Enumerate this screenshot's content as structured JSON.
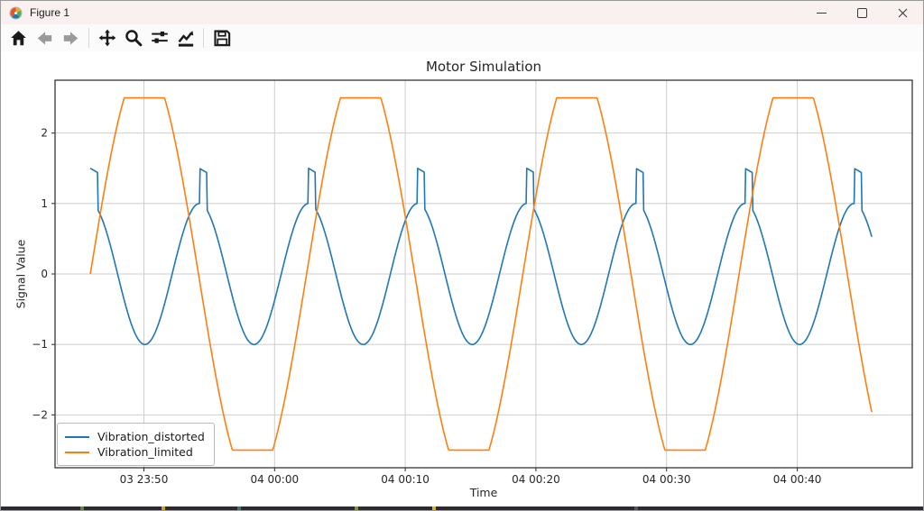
{
  "window": {
    "title": "Figure 1",
    "controls": [
      "minimize",
      "maximize",
      "close"
    ]
  },
  "toolbar": {
    "buttons": [
      "home",
      "back",
      "forward",
      "pan",
      "zoom",
      "configure-subplots",
      "edit-parameters",
      "save"
    ]
  },
  "chart_data": {
    "type": "line",
    "title": "Motor Simulation",
    "xlabel": "Time",
    "ylabel": "Signal Value",
    "grid": true,
    "x_axis": {
      "label": "Time",
      "tick_labels": [
        "03 23:50",
        "04 00:00",
        "04 00:10",
        "04 00:20",
        "04 00:30",
        "04 00:40"
      ],
      "tick_minutes": [
        0,
        10,
        20,
        30,
        40,
        50
      ],
      "xlim_minutes": [
        -6.8,
        58.8
      ],
      "time_origin_label": "03 23:50"
    },
    "y_axis": {
      "label": "Signal Value",
      "ticks": [
        -2,
        -1,
        0,
        1,
        2
      ],
      "ylim": [
        -2.75,
        2.75
      ]
    },
    "legend": {
      "position": "lower left",
      "entries": [
        "Vibration_distorted",
        "Vibration_limited"
      ]
    },
    "series": [
      {
        "name": "Vibration_distorted",
        "color": "#1f77b4",
        "waveform": "sine_with_flat_top_spikes",
        "amplitude": 1.0,
        "period_minutes": 8.35,
        "first_peak_minutes": -4.1,
        "spike_level_start": 1.5,
        "spike_level_end": 1.44,
        "spike_duration_minutes": 0.55,
        "t_start_minutes": -4.1,
        "t_end_minutes": 55.7
      },
      {
        "name": "Vibration_limited",
        "color": "#ff7f0e",
        "waveform": "clipped_sine",
        "amplitude": 3.0,
        "clip_level": 2.5,
        "period_minutes": 16.55,
        "rising_zero_crossing_minutes": -4.1,
        "t_start_minutes": -4.1,
        "t_end_minutes": 55.7
      }
    ],
    "colors": {
      "grid": "#cdcdcd",
      "spine": "#262626",
      "figure_background": "#ffffff"
    }
  }
}
